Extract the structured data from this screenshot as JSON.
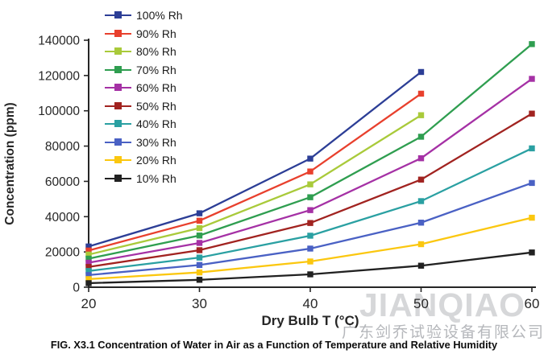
{
  "figure": {
    "caption": "FIG. X3.1 Concentration of Water in Air as a Function of Temperature and Relative Humidity"
  },
  "watermark": {
    "text_latin": "JIANQIAO",
    "text_cjk": "广东剑乔试验设备有限公司",
    "color_latin": "#d6d7d9",
    "color_cjk": "#b5b7bb"
  },
  "chart_data": {
    "type": "line",
    "title": "",
    "xlabel": "Dry Bulb T (°C)",
    "ylabel": "Concentration (ppm)",
    "xlim": [
      20,
      60
    ],
    "ylim": [
      0,
      140000
    ],
    "x_ticks": [
      20,
      30,
      40,
      50,
      60
    ],
    "y_ticks": [
      0,
      20000,
      40000,
      60000,
      80000,
      100000,
      120000,
      140000
    ],
    "grid": false,
    "legend_position": "top-left",
    "axis_color": "#262626",
    "series": [
      {
        "name": "100% Rh",
        "color": "#2c3e96",
        "x": [
          20,
          30,
          40,
          50
        ],
        "values": [
          23100,
          41900,
          72900,
          122000
        ]
      },
      {
        "name": "90% Rh",
        "color": "#e8402d",
        "x": [
          20,
          30,
          40,
          50
        ],
        "values": [
          20800,
          37700,
          65600,
          109700
        ]
      },
      {
        "name": "80% Rh",
        "color": "#a9ca3a",
        "x": [
          20,
          30,
          40,
          50
        ],
        "values": [
          18500,
          33500,
          58300,
          97500
        ]
      },
      {
        "name": "70% Rh",
        "color": "#2f9e50",
        "x": [
          20,
          30,
          40,
          50,
          60
        ],
        "values": [
          16200,
          29300,
          51000,
          85300,
          137800
        ]
      },
      {
        "name": "60% Rh",
        "color": "#a531a5",
        "x": [
          20,
          30,
          40,
          50,
          60
        ],
        "values": [
          13900,
          25100,
          43700,
          73100,
          118100
        ]
      },
      {
        "name": "50% Rh",
        "color": "#a12320",
        "x": [
          20,
          30,
          40,
          50,
          60
        ],
        "values": [
          11500,
          21000,
          36400,
          61000,
          98400
        ]
      },
      {
        "name": "40% Rh",
        "color": "#2aa0a2",
        "x": [
          20,
          30,
          40,
          50,
          60
        ],
        "values": [
          9200,
          16800,
          29200,
          48800,
          78700
        ]
      },
      {
        "name": "30% Rh",
        "color": "#4a61c4",
        "x": [
          20,
          30,
          40,
          50,
          60
        ],
        "values": [
          6900,
          12600,
          21900,
          36600,
          59100
        ]
      },
      {
        "name": "20% Rh",
        "color": "#fbc70f",
        "x": [
          20,
          30,
          40,
          50,
          60
        ],
        "values": [
          4600,
          8400,
          14600,
          24400,
          39400
        ]
      },
      {
        "name": "10% Rh",
        "color": "#212121",
        "x": [
          20,
          30,
          40,
          50,
          60
        ],
        "values": [
          2300,
          4200,
          7300,
          12200,
          19700
        ]
      }
    ]
  }
}
